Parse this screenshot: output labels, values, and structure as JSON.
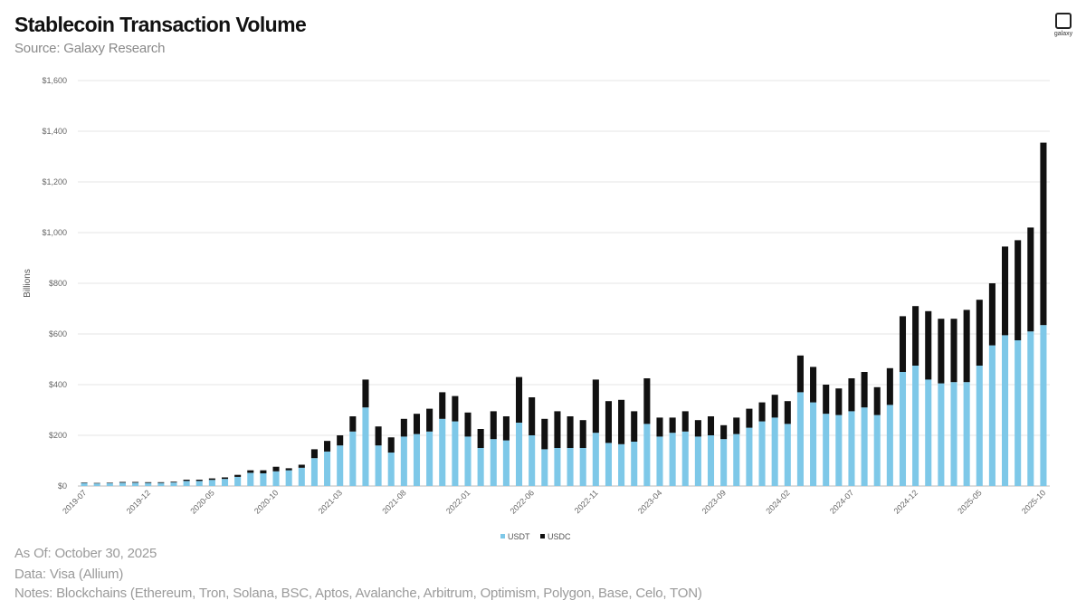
{
  "header": {
    "title": "Stablecoin Transaction Volume",
    "subtitle": "Source: Galaxy Research",
    "logo_text": "galaxy"
  },
  "footer": {
    "as_of": "As Of: October 30, 2025",
    "data_source": "Data: Visa (Allium)",
    "notes": "Notes: Blockchains (Ethereum, Tron, Solana, BSC, Aptos, Avalanche, Arbitrum, Optimism, Polygon, Base, Celo, TON)"
  },
  "colors": {
    "usdt": "#7ec8e8",
    "usdc": "#111111",
    "grid": "#e4e4e4"
  },
  "chart_data": {
    "type": "bar",
    "stacked": true,
    "ylabel": "Billions",
    "ylim": [
      0,
      1600
    ],
    "yticks": [
      0,
      200,
      400,
      600,
      800,
      1000,
      1200,
      1400,
      1600
    ],
    "ytick_labels": [
      "$0",
      "$200",
      "$400",
      "$600",
      "$800",
      "$1,000",
      "$1,200",
      "$1,400",
      "$1,600"
    ],
    "xtick_labels": [
      "2019-07",
      "2019-12",
      "2020-05",
      "2020-10",
      "2021-03",
      "2021-08",
      "2022-01",
      "2022-06",
      "2022-11",
      "2023-04",
      "2023-09",
      "2024-02",
      "2024-07",
      "2024-12",
      "2025-05",
      "2025-10"
    ],
    "xtick_every": 5,
    "legend": "bottom-center",
    "grid": true,
    "categories": [
      "2019-07",
      "2019-08",
      "2019-09",
      "2019-10",
      "2019-11",
      "2019-12",
      "2020-01",
      "2020-02",
      "2020-03",
      "2020-04",
      "2020-05",
      "2020-06",
      "2020-07",
      "2020-08",
      "2020-09",
      "2020-10",
      "2020-11",
      "2020-12",
      "2021-01",
      "2021-02",
      "2021-03",
      "2021-04",
      "2021-05",
      "2021-06",
      "2021-07",
      "2021-08",
      "2021-09",
      "2021-10",
      "2021-11",
      "2021-12",
      "2022-01",
      "2022-02",
      "2022-03",
      "2022-04",
      "2022-05",
      "2022-06",
      "2022-07",
      "2022-08",
      "2022-09",
      "2022-10",
      "2022-11",
      "2022-12",
      "2023-01",
      "2023-02",
      "2023-03",
      "2023-04",
      "2023-05",
      "2023-06",
      "2023-07",
      "2023-08",
      "2023-09",
      "2023-10",
      "2023-11",
      "2023-12",
      "2024-01",
      "2024-02",
      "2024-03",
      "2024-04",
      "2024-05",
      "2024-06",
      "2024-07",
      "2024-08",
      "2024-09",
      "2024-10",
      "2024-11",
      "2024-12",
      "2025-01",
      "2025-02",
      "2025-03",
      "2025-04",
      "2025-05",
      "2025-06",
      "2025-07",
      "2025-08",
      "2025-09",
      "2025-10"
    ],
    "series": [
      {
        "name": "USDT",
        "values": [
          12,
          10,
          11,
          13,
          13,
          12,
          12,
          14,
          20,
          20,
          24,
          28,
          36,
          52,
          50,
          58,
          62,
          72,
          110,
          136,
          160,
          215,
          310,
          160,
          132,
          195,
          205,
          215,
          265,
          255,
          195,
          150,
          185,
          180,
          250,
          200,
          145,
          150,
          150,
          150,
          210,
          170,
          165,
          175,
          245,
          195,
          210,
          215,
          195,
          200,
          185,
          205,
          230,
          255,
          270,
          245,
          370,
          330,
          285,
          280,
          295,
          310,
          280,
          320,
          450,
          475,
          420,
          405,
          410,
          410,
          475,
          555,
          595,
          575,
          610,
          635
        ]
      },
      {
        "name": "USDC",
        "values": [
          2,
          2,
          2,
          3,
          3,
          3,
          3,
          3,
          5,
          5,
          6,
          6,
          8,
          10,
          12,
          18,
          8,
          12,
          35,
          42,
          40,
          60,
          110,
          75,
          60,
          70,
          80,
          90,
          105,
          100,
          95,
          75,
          110,
          95,
          180,
          150,
          120,
          145,
          125,
          110,
          210,
          165,
          175,
          120,
          180,
          75,
          60,
          80,
          65,
          75,
          55,
          65,
          75,
          75,
          90,
          90,
          145,
          140,
          115,
          105,
          130,
          140,
          110,
          145,
          220,
          235,
          270,
          255,
          250,
          285,
          260,
          245,
          350,
          395,
          410,
          720
        ]
      }
    ]
  }
}
